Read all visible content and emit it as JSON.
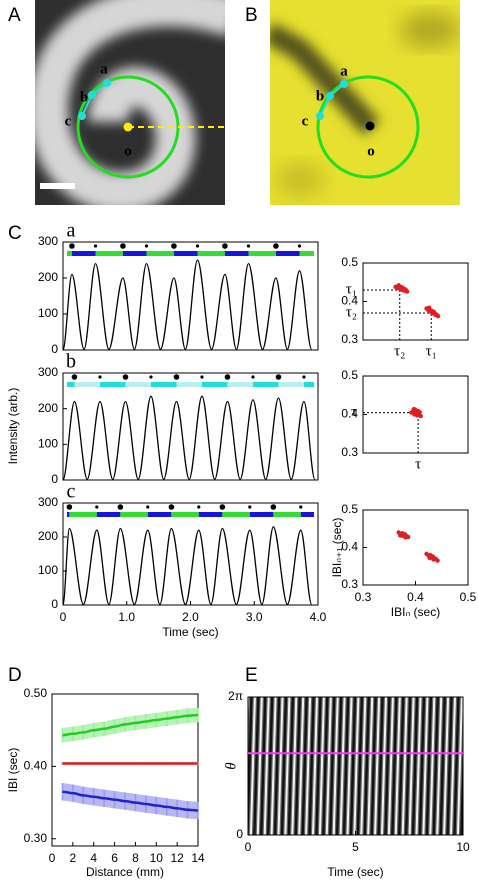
{
  "chart_data": [
    {
      "type": "image",
      "panel": "A",
      "labels": [
        "a",
        "b",
        "c",
        "o"
      ]
    },
    {
      "type": "image",
      "panel": "B",
      "labels": [
        "a",
        "b",
        "c",
        "o"
      ]
    },
    {
      "type": "line",
      "panel": "C",
      "label": "a",
      "color": "#000000",
      "bar_colors": [
        "#33dd33",
        "#1515dd"
      ],
      "x": [
        0,
        0.14,
        0.33,
        0.51,
        0.72,
        0.94,
        1.12,
        1.31,
        1.53,
        1.74,
        1.92,
        2.11,
        2.33,
        2.54,
        2.72,
        2.91,
        3.13,
        3.34,
        3.52,
        3.71,
        3.9
      ],
      "values": [
        0,
        210,
        2,
        240,
        2,
        200,
        2,
        240,
        2,
        200,
        2,
        250,
        2,
        210,
        2,
        240,
        2,
        200,
        2,
        220,
        2
      ],
      "xlim": [
        0,
        4
      ],
      "ylim": [
        0,
        300
      ],
      "yticks": [
        0,
        100,
        200,
        300
      ]
    },
    {
      "type": "line",
      "label": "b",
      "color": "#000000",
      "bar_colors": [
        "#22dddd",
        "#bbeeee"
      ],
      "ylabel": "Intensity (arb.)",
      "x": [
        0,
        0.18,
        0.38,
        0.58,
        0.78,
        0.98,
        1.18,
        1.38,
        1.58,
        1.78,
        1.98,
        2.18,
        2.38,
        2.58,
        2.78,
        2.98,
        3.18,
        3.38,
        3.58,
        3.78,
        3.95
      ],
      "values": [
        0,
        220,
        2,
        220,
        2,
        220,
        2,
        235,
        2,
        220,
        2,
        235,
        2,
        220,
        2,
        225,
        2,
        230,
        2,
        220,
        2
      ],
      "xlim": [
        0,
        4
      ],
      "ylim": [
        0,
        300
      ],
      "yticks": [
        0,
        100,
        200,
        300
      ]
    },
    {
      "type": "line",
      "label": "c",
      "color": "#000000",
      "bar_colors": [
        "#1515dd",
        "#33dd33"
      ],
      "xlabel": "Time (sec)",
      "x": [
        0,
        0.1,
        0.32,
        0.53,
        0.72,
        0.9,
        1.12,
        1.33,
        1.52,
        1.7,
        1.92,
        2.13,
        2.32,
        2.5,
        2.72,
        2.93,
        3.12,
        3.3,
        3.52,
        3.73,
        3.9
      ],
      "values": [
        0,
        225,
        2,
        220,
        2,
        225,
        2,
        220,
        2,
        225,
        2,
        220,
        2,
        225,
        2,
        220,
        2,
        230,
        2,
        220,
        2
      ],
      "xlim": [
        0,
        4
      ],
      "xticks": [
        0,
        {
          "value": 1,
          "label": "1.0"
        },
        {
          "value": 2,
          "label": "2.0"
        },
        {
          "value": 3,
          "label": "3.0"
        },
        {
          "value": 4,
          "label": "4.0"
        }
      ],
      "ylim": [
        0,
        300
      ],
      "yticks": [
        0,
        100,
        200,
        300
      ]
    },
    {
      "type": "scatter",
      "color": "#e02020",
      "xlim": [
        0.3,
        0.5
      ],
      "ylim": [
        0.3,
        0.5
      ],
      "yticks": [
        0.3,
        0.4,
        0.5
      ],
      "annotations": [
        {
          "label": "τ₁",
          "value": 0.43
        },
        {
          "label": "τ₂",
          "value": 0.37
        }
      ],
      "x": [
        0.362,
        0.366,
        0.369,
        0.371,
        0.373,
        0.375,
        0.377,
        0.379,
        0.381,
        0.384,
        0.368,
        0.374,
        0.378,
        0.421,
        0.424,
        0.427,
        0.429,
        0.431,
        0.433,
        0.435,
        0.437,
        0.44,
        0.443,
        0.426,
        0.432,
        0.438
      ],
      "values": [
        0.438,
        0.435,
        0.44,
        0.432,
        0.436,
        0.43,
        0.434,
        0.428,
        0.431,
        0.426,
        0.442,
        0.437,
        0.433,
        0.382,
        0.378,
        0.38,
        0.374,
        0.376,
        0.371,
        0.373,
        0.368,
        0.366,
        0.362,
        0.384,
        0.369,
        0.365
      ]
    },
    {
      "type": "scatter",
      "color": "#e02020",
      "xlim": [
        0.3,
        0.5
      ],
      "ylim": [
        0.3,
        0.5
      ],
      "yticks": [
        0.3,
        0.4,
        0.5
      ],
      "annotations": [
        {
          "label": "τ",
          "value": 0.405
        }
      ],
      "x": [
        0.392,
        0.396,
        0.398,
        0.4,
        0.401,
        0.403,
        0.404,
        0.406,
        0.408,
        0.41,
        0.397,
        0.402,
        0.405,
        0.399,
        0.407
      ],
      "values": [
        0.405,
        0.41,
        0.4,
        0.412,
        0.404,
        0.398,
        0.408,
        0.402,
        0.406,
        0.396,
        0.414,
        0.401,
        0.409,
        0.403,
        0.399
      ]
    },
    {
      "type": "scatter",
      "color": "#e02020",
      "xlim": [
        0.3,
        0.5
      ],
      "ylim": [
        0.3,
        0.5
      ],
      "yticks": [
        0.3,
        0.4,
        0.5
      ],
      "xticks": [
        0.3,
        0.4,
        0.5
      ],
      "xlabel": "IBIₙ (sec)",
      "ylabel": "IBIₙ₊₁ (sec)",
      "x": [
        0.368,
        0.372,
        0.375,
        0.378,
        0.38,
        0.383,
        0.386,
        0.376,
        0.371,
        0.381,
        0.421,
        0.425,
        0.428,
        0.43,
        0.433,
        0.436,
        0.439,
        0.442,
        0.427,
        0.434
      ],
      "values": [
        0.44,
        0.436,
        0.438,
        0.433,
        0.435,
        0.43,
        0.428,
        0.431,
        0.432,
        0.427,
        0.383,
        0.378,
        0.38,
        0.374,
        0.376,
        0.371,
        0.369,
        0.365,
        0.372,
        0.368
      ]
    },
    {
      "type": "line",
      "panel": "D",
      "xlabel": "Distance (mm)",
      "ylabel": "IBI (sec)",
      "x": [
        1,
        2,
        3,
        4,
        5,
        6,
        7,
        8,
        9,
        10,
        11,
        12,
        13,
        14
      ],
      "series": [
        {
          "color": "#22cc22",
          "band_color": "#99ee99",
          "values": [
            0.443,
            0.445,
            0.447,
            0.45,
            0.452,
            0.455,
            0.458,
            0.46,
            0.462,
            0.464,
            0.466,
            0.468,
            0.47,
            0.471
          ],
          "errors": [
            0.01,
            0.01,
            0.01,
            0.01,
            0.01,
            0.01,
            0.01,
            0.01,
            0.01,
            0.01,
            0.01,
            0.01,
            0.01,
            0.01
          ]
        },
        {
          "color": "#dd2222",
          "band_color": "#ee9999",
          "values": [
            0.404,
            0.404,
            0.404,
            0.404,
            0.404,
            0.404,
            0.404,
            0.404,
            0.404,
            0.404,
            0.404,
            0.404,
            0.404,
            0.404
          ],
          "errors": [
            0.002,
            0.002,
            0.002,
            0.002,
            0.002,
            0.002,
            0.002,
            0.002,
            0.002,
            0.002,
            0.002,
            0.002,
            0.002,
            0.002
          ]
        },
        {
          "color": "#2222cc",
          "band_color": "#9999ee",
          "values": [
            0.365,
            0.363,
            0.36,
            0.358,
            0.356,
            0.354,
            0.352,
            0.35,
            0.348,
            0.346,
            0.344,
            0.342,
            0.34,
            0.339
          ],
          "errors": [
            0.012,
            0.012,
            0.012,
            0.012,
            0.012,
            0.012,
            0.012,
            0.012,
            0.012,
            0.012,
            0.012,
            0.012,
            0.012,
            0.012
          ]
        }
      ],
      "xlim": [
        0,
        14
      ],
      "xticks": [
        0,
        2,
        4,
        6,
        8,
        10,
        12,
        14
      ],
      "ylim": [
        0.29,
        0.5
      ],
      "yticks": [
        {
          "value": 0.3,
          "label": "0.30"
        },
        {
          "value": 0.4,
          "label": "0.40"
        },
        {
          "value": 0.5,
          "label": "0.50"
        }
      ]
    },
    {
      "type": "kymograph",
      "panel": "E",
      "xlabel": "Time (sec)",
      "ylabel": "θ",
      "xlim": [
        0,
        10
      ],
      "xticks": [
        0,
        5,
        10
      ],
      "ylim": [
        0,
        6.283
      ],
      "yticks": [
        0,
        {
          "value": 6.283,
          "label": "2π"
        }
      ],
      "marker_line": {
        "value": 3.72,
        "color": "#ff33ff"
      }
    }
  ]
}
